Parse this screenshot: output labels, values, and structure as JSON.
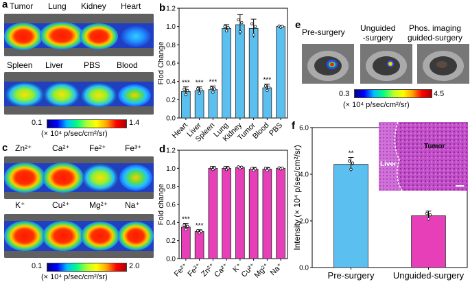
{
  "panel_a": {
    "letter": "a",
    "top_labels": [
      "Tumor",
      "Lung",
      "Kidney",
      "Heart"
    ],
    "bottom_labels": [
      "Spleen",
      "Liver",
      "PBS",
      "Blood"
    ],
    "colorbar_min": "0.1",
    "colorbar_max": "1.4",
    "unit": "(× 10⁴ p/sec/cm²/sr)"
  },
  "panel_c": {
    "letter": "c",
    "top_labels": [
      "Zn²⁺",
      "Ca²⁺",
      "Fe²⁺",
      "Fe³⁺"
    ],
    "bottom_labels": [
      "K⁺",
      "Cu²⁺",
      "Mg²⁺",
      "Na⁺"
    ],
    "colorbar_min": "0.1",
    "colorbar_max": "2.0",
    "unit": "(× 10⁴ p/sec/cm²/sr)"
  },
  "panel_e": {
    "letter": "e",
    "labels": [
      "Pre-surgery",
      "Unguided\n-surgery",
      "Phos. imaging\nguided-surgery"
    ],
    "colorbar_min": "0.3",
    "colorbar_max": "4.5",
    "unit": "(× 10⁴ p/sec/cm²/sr)"
  },
  "panel_f_inset": {
    "tumor_label": "Tumor",
    "liver_label": "Liver"
  },
  "chart_data": [
    {
      "id": "b",
      "type": "bar",
      "letter": "b",
      "categories": [
        "Heart",
        "Liver",
        "Spleen",
        "Lung",
        "Kidney",
        "Tumor",
        "Blood",
        "PBS"
      ],
      "values": [
        0.29,
        0.3,
        0.31,
        0.98,
        1.02,
        0.98,
        0.33,
        1.0
      ],
      "errors": [
        0.05,
        0.04,
        0.04,
        0.04,
        0.11,
        0.1,
        0.04,
        0.01
      ],
      "significance": [
        "***",
        "***",
        "***",
        "",
        "",
        "",
        "***",
        ""
      ],
      "ylabel": "Flod Change",
      "ylim": [
        0.0,
        1.2
      ],
      "yticks": [
        0.0,
        0.2,
        0.4,
        0.6,
        0.8,
        1.0,
        1.2
      ],
      "color": "#5bc0f0"
    },
    {
      "id": "d",
      "type": "bar",
      "letter": "d",
      "categories": [
        "Fe²⁺",
        "Fe³⁺",
        "Zn²⁺",
        "Ca²⁺",
        "K⁺",
        "Cu²⁺",
        "Mg²⁺",
        "Na⁺"
      ],
      "values": [
        0.35,
        0.3,
        1.0,
        1.0,
        1.01,
        0.99,
        0.99,
        1.0
      ],
      "errors": [
        0.04,
        0.02,
        0.02,
        0.02,
        0.01,
        0.02,
        0.02,
        0.01
      ],
      "significance": [
        "***",
        "***",
        "",
        "",
        "",
        "",
        "",
        ""
      ],
      "ylabel": "Fold change",
      "ylim": [
        0.0,
        1.2
      ],
      "yticks": [
        0.0,
        0.2,
        0.4,
        0.6,
        0.8,
        1.0,
        1.2
      ],
      "color": "#e63fb8"
    },
    {
      "id": "f",
      "type": "bar",
      "letter": "f",
      "categories": [
        "Pre-surgery",
        "Unguided-surgery"
      ],
      "values": [
        4.42,
        2.22
      ],
      "errors": [
        0.3,
        0.2
      ],
      "significance": [
        "**",
        ""
      ],
      "ylabel": "Intensity (× 10⁴ p/sec/cm²/sr)",
      "ylim": [
        0.0,
        6.0
      ],
      "yticks": [
        0.0,
        2.0,
        4.0,
        6.0
      ],
      "colors": [
        "#5bc0f0",
        "#e63fb8"
      ]
    }
  ]
}
